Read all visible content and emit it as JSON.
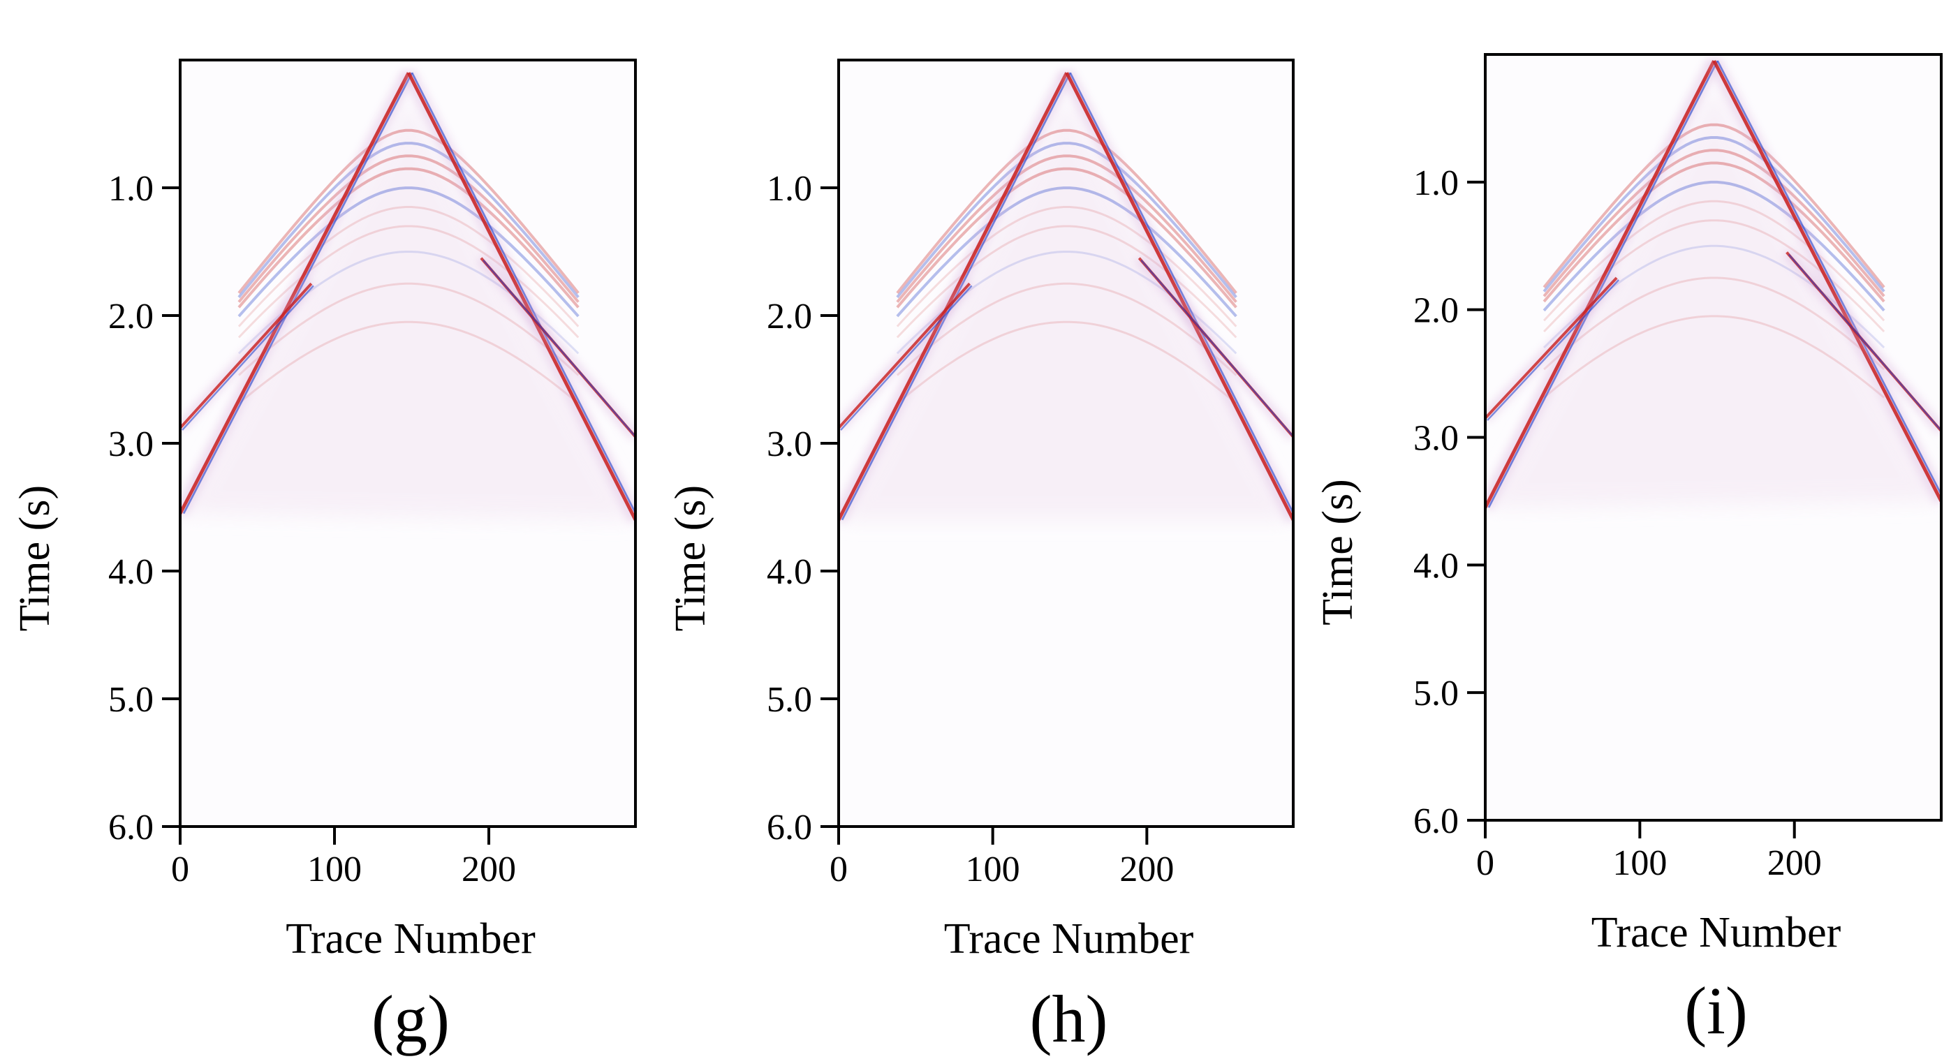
{
  "figure": {
    "panels": [
      "(g)",
      "(h)",
      "(i)"
    ]
  },
  "chart_data": [
    {
      "type": "heatmap",
      "panel_label": "(g)",
      "xlabel": "Trace  Number",
      "ylabel": "Time (s)",
      "xlim": [
        0,
        295
      ],
      "ylim": [
        0.0,
        6.0
      ],
      "y_inverted": true,
      "x_ticks": [
        0,
        100,
        200
      ],
      "x_tick_labels": [
        "0",
        "100",
        "200"
      ],
      "y_ticks": [
        1.0,
        2.0,
        3.0,
        4.0,
        5.0,
        6.0
      ],
      "y_tick_labels": [
        "1.0",
        "2.0",
        "3.0",
        "4.0",
        "5.0",
        "6.0"
      ],
      "grid": false,
      "colormap": [
        "#1e3cc8",
        "#ffffff",
        "#c81e1e"
      ],
      "events": {
        "apex_trace": 148,
        "apex_time": 0.1,
        "direct_left_end_time": 3.55,
        "direct_right_end_time": 3.6,
        "refraction_left_end_time": 2.88,
        "refraction_right_end_time": 2.95,
        "reflection_time": 1.0
      }
    },
    {
      "type": "heatmap",
      "panel_label": "(h)",
      "xlabel": "Trace  Number",
      "ylabel": "Time (s)",
      "xlim": [
        0,
        295
      ],
      "ylim": [
        0.0,
        6.0
      ],
      "y_inverted": true,
      "x_ticks": [
        0,
        100,
        200
      ],
      "x_tick_labels": [
        "0",
        "100",
        "200"
      ],
      "y_ticks": [
        1.0,
        2.0,
        3.0,
        4.0,
        5.0,
        6.0
      ],
      "y_tick_labels": [
        "1.0",
        "2.0",
        "3.0",
        "4.0",
        "5.0",
        "6.0"
      ],
      "grid": false,
      "colormap": [
        "#1e3cc8",
        "#ffffff",
        "#c81e1e"
      ],
      "events": {
        "apex_trace": 148,
        "apex_time": 0.1,
        "direct_left_end_time": 3.6,
        "direct_right_end_time": 3.6,
        "refraction_left_end_time": 2.88,
        "refraction_right_end_time": 2.95,
        "reflection_time": 1.0
      }
    },
    {
      "type": "heatmap",
      "panel_label": "(i)",
      "xlabel": "Trace  Number",
      "ylabel": "Time (s)",
      "xlim": [
        0,
        295
      ],
      "ylim": [
        0.0,
        6.0
      ],
      "y_inverted": true,
      "x_ticks": [
        0,
        100,
        200
      ],
      "x_tick_labels": [
        "0",
        "100",
        "200"
      ],
      "y_ticks": [
        1.0,
        2.0,
        3.0,
        4.0,
        5.0,
        6.0
      ],
      "y_tick_labels": [
        "1.0",
        "2.0",
        "3.0",
        "4.0",
        "5.0",
        "6.0"
      ],
      "grid": false,
      "colormap": [
        "#1e3cc8",
        "#ffffff",
        "#c81e1e"
      ],
      "events": {
        "apex_trace": 148,
        "apex_time": 0.05,
        "direct_left_end_time": 3.55,
        "direct_right_end_time": 3.5,
        "refraction_left_end_time": 2.85,
        "refraction_right_end_time": 2.95,
        "reflection_time": 1.0
      }
    }
  ]
}
